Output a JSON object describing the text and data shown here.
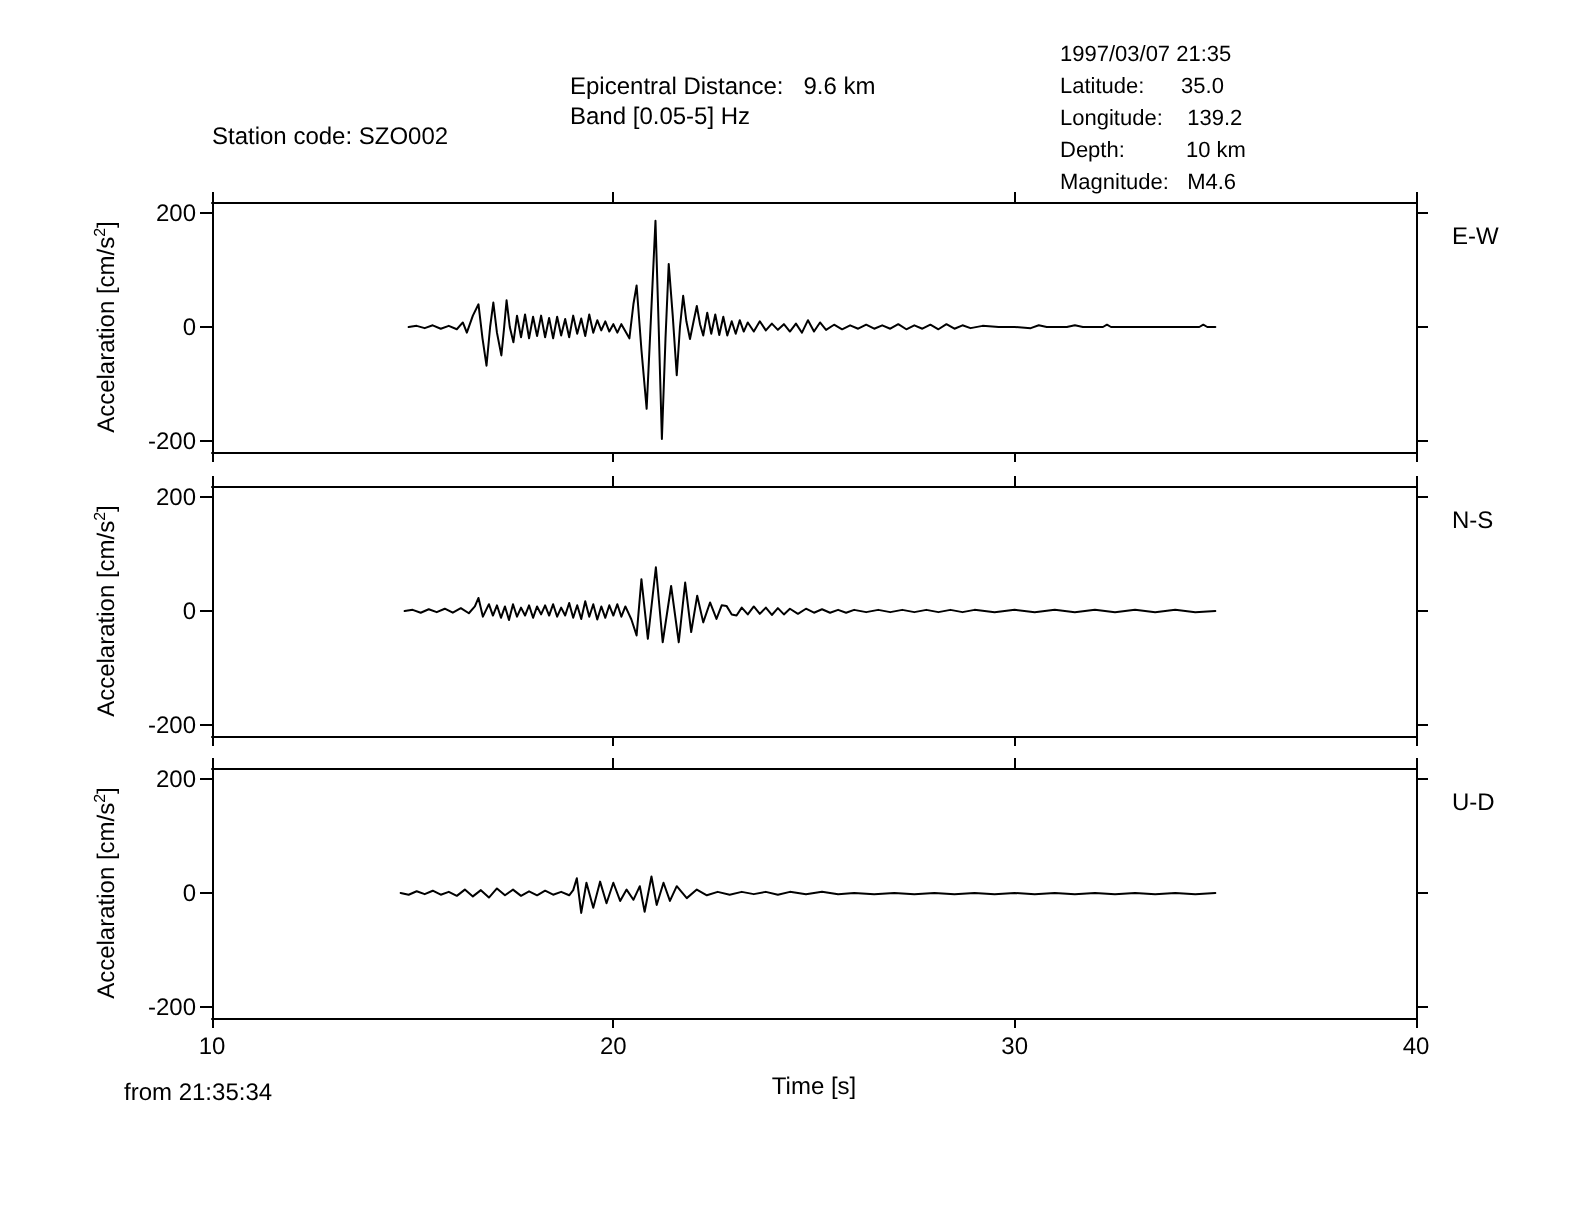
{
  "chart_data": [
    {
      "type": "line",
      "legend": "right",
      "ylabel": "Accelaration [cm/s$^{2}$]",
      "annotations": [
        "Station code: SZO002",
        "Epicentral Distance:   9.6 km",
        "Band [0.05-5] Hz",
        "1997/03/07 21:35",
        "Latitude:      35.0",
        "Longitude:    139.2",
        "Depth:          10 km",
        "Magnitude:   M4.6"
      ],
      "xlim": [
        10,
        40
      ],
      "xticks": [
        10,
        20,
        30,
        40
      ],
      "ylim": [
        -220,
        220
      ],
      "yticks": [
        -200,
        0,
        200
      ],
      "tick_labels": "y",
      "grid": false,
      "marker": "none",
      "line_style": "solid",
      "series": [
        {
          "name": "E-W",
          "color": "#000000",
          "x": [
            14.9,
            15.1,
            15.3,
            15.5,
            15.7,
            15.9,
            16.1,
            16.25,
            16.35,
            16.5,
            16.64,
            16.74,
            16.84,
            16.93,
            17.01,
            17.1,
            17.21,
            17.28,
            17.34,
            17.42,
            17.51,
            17.6,
            17.7,
            17.8,
            17.9,
            18.0,
            18.1,
            18.2,
            18.3,
            18.4,
            18.5,
            18.6,
            18.7,
            18.8,
            18.9,
            19.0,
            19.1,
            19.2,
            19.3,
            19.4,
            19.5,
            19.6,
            19.7,
            19.8,
            19.9,
            20.0,
            20.1,
            20.2,
            20.4,
            20.5,
            20.58,
            20.7,
            20.83,
            20.94,
            21.05,
            21.13,
            21.21,
            21.3,
            21.38,
            21.48,
            21.58,
            21.66,
            21.74,
            21.82,
            21.91,
            22.0,
            22.08,
            22.16,
            22.24,
            22.34,
            22.44,
            22.54,
            22.64,
            22.74,
            22.84,
            22.95,
            23.05,
            23.15,
            23.25,
            23.35,
            23.5,
            23.65,
            23.8,
            23.95,
            24.1,
            24.25,
            24.4,
            24.55,
            24.7,
            24.85,
            25.0,
            25.15,
            25.3,
            25.5,
            25.7,
            25.9,
            26.1,
            26.3,
            26.5,
            26.7,
            26.9,
            27.1,
            27.3,
            27.5,
            27.7,
            27.9,
            28.1,
            28.3,
            28.5,
            28.7,
            28.9,
            29.2,
            29.6,
            30.0,
            30.4,
            30.6,
            30.8,
            31.3,
            31.5,
            31.7,
            32.2,
            32.3,
            32.4,
            34.6,
            34.7,
            34.8,
            35.0
          ],
          "values": [
            0,
            2,
            -2,
            3,
            -3,
            2,
            -4,
            8,
            -10,
            20,
            40,
            -20,
            -68,
            0,
            43,
            -10,
            -50,
            0,
            47,
            0,
            -27,
            20,
            -18,
            22,
            -20,
            18,
            -16,
            20,
            -18,
            16,
            -20,
            18,
            -15,
            14,
            -18,
            20,
            -12,
            15,
            -16,
            22,
            -10,
            12,
            -6,
            10,
            -8,
            5,
            -10,
            5,
            -20,
            40,
            73,
            -40,
            -144,
            20,
            187,
            0,
            -197,
            -20,
            111,
            20,
            -85,
            0,
            55,
            10,
            -21,
            10,
            37,
            5,
            -15,
            25,
            -12,
            22,
            -14,
            18,
            -15,
            10,
            -12,
            12,
            -8,
            8,
            -8,
            10,
            -6,
            6,
            -5,
            5,
            -8,
            6,
            -10,
            12,
            -8,
            8,
            -5,
            4,
            -4,
            3,
            -3,
            4,
            -3,
            3,
            -3,
            5,
            -4,
            3,
            -3,
            4,
            -4,
            5,
            -3,
            3,
            -2,
            2,
            0,
            0,
            -2,
            3,
            0,
            0,
            3,
            0,
            0,
            4,
            0,
            0,
            4,
            0,
            0
          ]
        }
      ]
    },
    {
      "type": "line",
      "legend": "right",
      "ylabel": "Accelaration [cm/s$^{2}$]",
      "xlim": [
        10,
        40
      ],
      "xticks": [
        10,
        20,
        30,
        40
      ],
      "ylim": [
        -220,
        220
      ],
      "yticks": [
        -200,
        0,
        200
      ],
      "tick_labels": "y",
      "grid": false,
      "marker": "none",
      "line_style": "solid",
      "series": [
        {
          "name": "N-S",
          "color": "#000000",
          "x": [
            14.8,
            15.0,
            15.2,
            15.4,
            15.6,
            15.8,
            16.0,
            16.2,
            16.4,
            16.55,
            16.64,
            16.75,
            16.9,
            17.0,
            17.1,
            17.2,
            17.3,
            17.4,
            17.5,
            17.6,
            17.7,
            17.8,
            17.9,
            18.0,
            18.1,
            18.2,
            18.3,
            18.4,
            18.5,
            18.6,
            18.7,
            18.8,
            18.9,
            19.0,
            19.1,
            19.2,
            19.3,
            19.4,
            19.5,
            19.6,
            19.7,
            19.8,
            19.9,
            20.0,
            20.1,
            20.2,
            20.3,
            20.45,
            20.58,
            20.7,
            20.86,
            21.06,
            21.23,
            21.44,
            21.63,
            21.79,
            21.94,
            22.09,
            22.24,
            22.41,
            22.57,
            22.7,
            22.82,
            22.95,
            23.07,
            23.2,
            23.35,
            23.5,
            23.65,
            23.8,
            23.95,
            24.1,
            24.25,
            24.4,
            24.6,
            24.8,
            25.0,
            25.2,
            25.4,
            25.6,
            25.8,
            26.0,
            26.3,
            26.6,
            26.9,
            27.2,
            27.5,
            27.8,
            28.1,
            28.4,
            28.7,
            29.0,
            29.5,
            30.0,
            30.5,
            31.0,
            31.5,
            32.0,
            32.5,
            33.0,
            33.5,
            34.0,
            34.5,
            35.0
          ],
          "values": [
            0,
            2,
            -3,
            3,
            -2,
            4,
            -3,
            5,
            -4,
            8,
            23,
            -10,
            12,
            -8,
            10,
            -12,
            8,
            -16,
            12,
            -10,
            6,
            -8,
            10,
            -12,
            8,
            -6,
            10,
            -8,
            12,
            -10,
            6,
            -8,
            14,
            -12,
            10,
            -14,
            17,
            -10,
            12,
            -15,
            8,
            -12,
            10,
            -8,
            12,
            -10,
            8,
            -15,
            -43,
            56,
            -49,
            77,
            -55,
            44,
            -55,
            50,
            -37,
            27,
            -20,
            15,
            -14,
            10,
            9,
            -6,
            -8,
            6,
            -6,
            8,
            -5,
            6,
            -7,
            5,
            -6,
            4,
            -5,
            4,
            -3,
            3,
            -3,
            2,
            -3,
            2,
            -2,
            2,
            -2,
            2,
            -2,
            2,
            -2,
            2,
            -2,
            2,
            -2,
            2,
            -2,
            2,
            -2,
            2,
            -2,
            2,
            -2,
            2,
            -2,
            0
          ]
        }
      ]
    },
    {
      "type": "line",
      "legend": "right",
      "ylabel": "Accelaration [cm/s$^{2}$]",
      "xlabel": "Time [s]",
      "annotations": [
        "from 21:35:34"
      ],
      "xlim": [
        10,
        40
      ],
      "xticks": [
        10,
        20,
        30,
        40
      ],
      "ylim": [
        -220,
        220
      ],
      "yticks": [
        -200,
        0,
        200
      ],
      "grid": false,
      "marker": "none",
      "line_style": "solid",
      "series": [
        {
          "name": "U-D",
          "color": "#000000",
          "x": [
            14.7,
            14.9,
            15.1,
            15.3,
            15.5,
            15.7,
            15.9,
            16.1,
            16.3,
            16.5,
            16.7,
            16.9,
            17.1,
            17.3,
            17.5,
            17.7,
            17.9,
            18.1,
            18.3,
            18.5,
            18.7,
            18.9,
            19.0,
            19.09,
            19.2,
            19.33,
            19.5,
            19.67,
            19.83,
            20.0,
            20.17,
            20.33,
            20.5,
            20.66,
            20.78,
            20.95,
            21.08,
            21.25,
            21.41,
            21.58,
            21.83,
            22.08,
            22.33,
            22.6,
            22.9,
            23.2,
            23.5,
            23.8,
            24.1,
            24.4,
            24.8,
            25.2,
            25.6,
            26.0,
            26.5,
            27.0,
            27.5,
            28.0,
            28.5,
            29.0,
            29.5,
            30.0,
            30.5,
            31.0,
            31.5,
            32.0,
            32.5,
            33.0,
            33.5,
            34.0,
            34.5,
            35.0
          ],
          "values": [
            0,
            -3,
            3,
            -2,
            4,
            -3,
            2,
            -5,
            6,
            -6,
            5,
            -8,
            8,
            -4,
            6,
            -5,
            3,
            -4,
            4,
            -3,
            2,
            -4,
            5,
            26,
            -35,
            18,
            -26,
            20,
            -18,
            18,
            -14,
            6,
            -12,
            12,
            -33,
            29,
            -21,
            18,
            -14,
            12,
            -9,
            6,
            -4,
            2,
            -3,
            2,
            -2,
            2,
            -3,
            2,
            -2,
            2,
            -2,
            0,
            -2,
            0,
            -2,
            0,
            -2,
            0,
            -2,
            0,
            -2,
            0,
            -2,
            0,
            -2,
            0,
            -2,
            0,
            -2,
            0
          ]
        }
      ]
    }
  ]
}
